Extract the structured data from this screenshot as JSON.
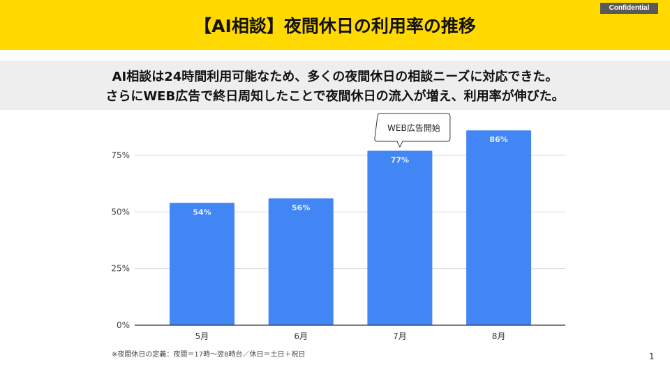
{
  "header": {
    "title": "【AI相談】夜間休日の利用率の推移",
    "badge": "Confidential"
  },
  "message": {
    "line1": "AI相談は24時間利用可能なため、多くの夜間休日の相談ニーズに対応できた。",
    "line2": "さらにWEB広告で終日周知したことで夜間休日の流入が増え、利用率が伸びた。"
  },
  "chart_data": {
    "type": "bar",
    "categories": [
      "5月",
      "6月",
      "7月",
      "8月"
    ],
    "values": [
      54,
      56,
      77,
      86
    ],
    "data_labels": [
      "54%",
      "56%",
      "77%",
      "86%"
    ],
    "y_ticks": [
      "0%",
      "25%",
      "50%",
      "75%"
    ],
    "ylim": [
      0,
      100
    ],
    "grid": true,
    "bar_color": "#4285F4",
    "annotation": {
      "text": "WEB広告開始",
      "category": "7月"
    }
  },
  "footnote": "※夜間休日の定義：夜間＝17時〜翌8時台／休日＝土日＋祝日",
  "page_number": "1"
}
